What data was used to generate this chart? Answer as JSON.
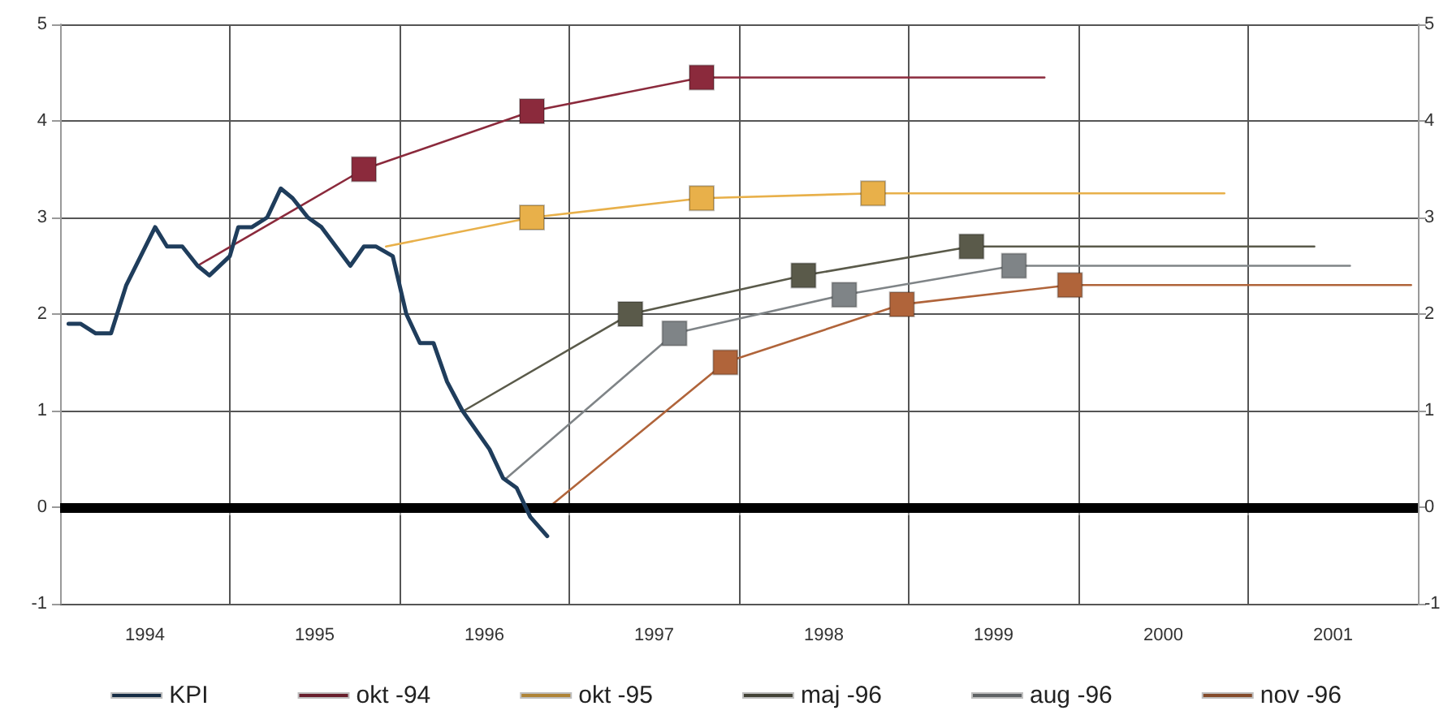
{
  "chart_data": {
    "type": "line",
    "xlim": [
      1994,
      2002
    ],
    "xticks": [
      {
        "value": 1994,
        "label": null
      },
      {
        "value": 1994.5,
        "label": "1994"
      },
      {
        "value": 1995,
        "label": null
      },
      {
        "value": 1995.5,
        "label": "1995"
      },
      {
        "value": 1996,
        "label": null
      },
      {
        "value": 1996.5,
        "label": "1996"
      },
      {
        "value": 1997,
        "label": null
      },
      {
        "value": 1997.5,
        "label": "1997"
      },
      {
        "value": 1998,
        "label": null
      },
      {
        "value": 1998.5,
        "label": "1998"
      },
      {
        "value": 1999,
        "label": null
      },
      {
        "value": 1999.5,
        "label": "1999"
      },
      {
        "value": 2000,
        "label": null
      },
      {
        "value": 2000.5,
        "label": "2000"
      },
      {
        "value": 2001,
        "label": null
      },
      {
        "value": 2001.5,
        "label": "2001"
      },
      {
        "value": 2002,
        "label": null
      }
    ],
    "ylim": [
      -1,
      5
    ],
    "yticks": [
      -1,
      0,
      1,
      2,
      3,
      4,
      5
    ],
    "y2lim": [
      -1,
      5
    ],
    "y2ticks": [
      -1,
      0,
      1,
      2,
      3,
      4,
      5
    ],
    "grid": true,
    "legend": "bottom",
    "marker": "square",
    "line_style": "solid",
    "ref_lines": [
      {
        "axis": "y",
        "value": 0,
        "label": null,
        "color": "#000000"
      }
    ],
    "series": [
      {
        "name": "KPI",
        "color": "#1f3d5c",
        "marker": "none",
        "x": [
          1994.05,
          1994.12,
          1994.21,
          1994.3,
          1994.39,
          1994.56,
          1994.63,
          1994.72,
          1994.81,
          1994.88,
          1995,
          1995.05,
          1995.13,
          1995.22,
          1995.3,
          1995.37,
          1995.46,
          1995.54,
          1995.71,
          1995.79,
          1995.86,
          1995.96,
          1996.04,
          1996.12,
          1996.2,
          1996.28,
          1996.37,
          1996.53,
          1996.61,
          1996.69,
          1996.77,
          1996.87
        ],
        "values": [
          1.9,
          1.9,
          1.8,
          1.8,
          2.3,
          2.9,
          2.7,
          2.7,
          2.5,
          2.4,
          2.6,
          2.9,
          2.9,
          3.0,
          3.3,
          3.2,
          3.0,
          2.9,
          2.5,
          2.7,
          2.7,
          2.6,
          2.0,
          1.7,
          1.7,
          1.3,
          1.0,
          0.6,
          0.3,
          0.2,
          -0.1,
          -0.3
        ]
      },
      {
        "name": "okt -94",
        "color": "#8b2a3c",
        "x": [
          1994.81,
          1995.79,
          1996.78,
          1997.78,
          1999.8
        ],
        "values": [
          2.5,
          3.5,
          4.1,
          4.45,
          4.45
        ]
      },
      {
        "name": "okt -95",
        "color": "#e8b04a",
        "x": [
          1995.92,
          1996.78,
          1997.78,
          1998.79,
          2000.86
        ],
        "values": [
          2.7,
          3.0,
          3.2,
          3.25,
          3.25
        ]
      },
      {
        "name": "maj -96",
        "color": "#5a5a4a",
        "x": [
          1996.38,
          1997.36,
          1998.38,
          1999.37,
          2001.39
        ],
        "values": [
          1.0,
          2.0,
          2.4,
          2.7,
          2.7
        ]
      },
      {
        "name": "aug -96",
        "color": "#7f8487",
        "x": [
          1996.63,
          1997.62,
          1998.62,
          1999.62,
          2001.6
        ],
        "values": [
          0.3,
          1.8,
          2.2,
          2.5,
          2.5
        ]
      },
      {
        "name": "nov -96",
        "color": "#b0643a",
        "x": [
          1996.88,
          1997.92,
          1998.96,
          1999.95,
          2001.96
        ],
        "values": [
          0.0,
          1.5,
          2.1,
          2.3,
          2.3
        ]
      }
    ]
  }
}
